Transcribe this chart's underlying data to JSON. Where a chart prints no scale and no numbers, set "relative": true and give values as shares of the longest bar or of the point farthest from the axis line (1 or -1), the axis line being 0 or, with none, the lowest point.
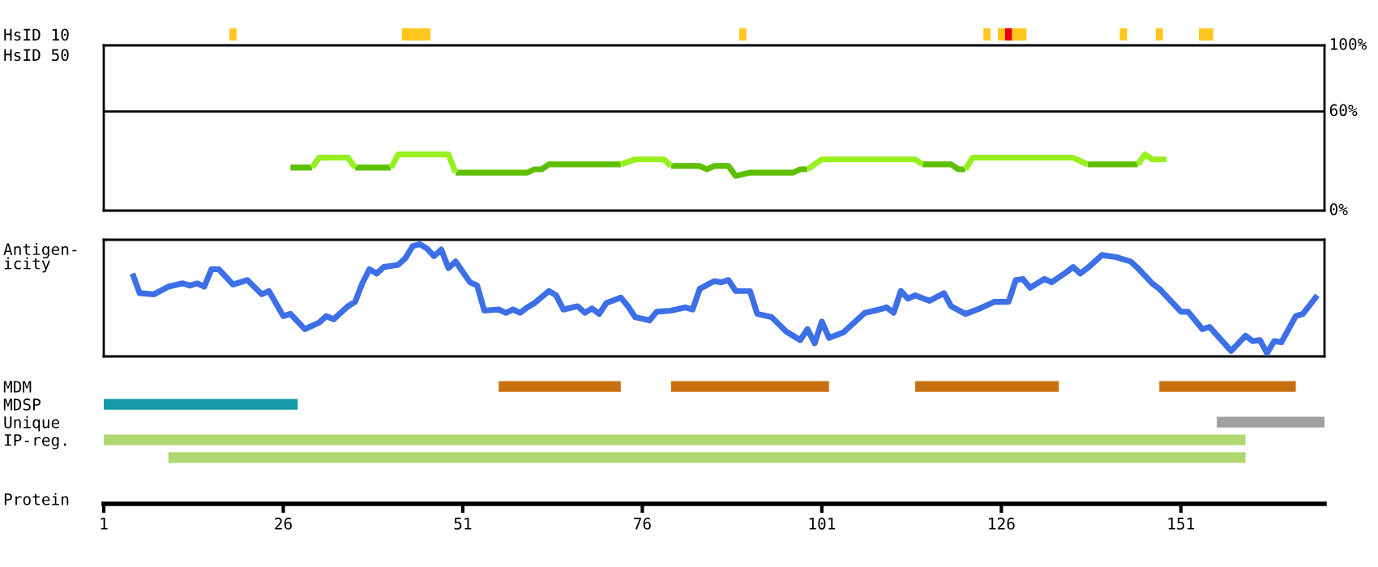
{
  "chart_data": [
    {
      "type": "bar",
      "orientation": "horizontal",
      "categories": [
        "HsID 10",
        "HsID 50"
      ],
      "xlim": [
        1,
        171
      ],
      "xticks": [
        1,
        26,
        51,
        76,
        101,
        126,
        151
      ],
      "tick_labels": "y",
      "series": [
        {
          "color": "#ffc61e",
          "base": [
            18.5,
            null
          ],
          "values": [
            1,
            null
          ]
        },
        {
          "color": "#ffc61e",
          "base": [
            42.5,
            null
          ],
          "values": [
            4,
            null
          ]
        },
        {
          "color": "#ffc61e",
          "base": [
            89.5,
            null
          ],
          "values": [
            1,
            null
          ]
        },
        {
          "color": "#ffc61e",
          "base": [
            123.5,
            null
          ],
          "values": [
            1,
            null
          ]
        },
        {
          "color": "#ffc61e",
          "base": [
            125.5,
            null
          ],
          "values": [
            1,
            null
          ]
        },
        {
          "color": "#e8000b",
          "base": [
            126.5,
            null
          ],
          "values": [
            1,
            null
          ]
        },
        {
          "color": "#ffc61e",
          "base": [
            127.5,
            null
          ],
          "values": [
            2,
            null
          ]
        },
        {
          "color": "#ffc61e",
          "base": [
            142.5,
            null
          ],
          "values": [
            1,
            null
          ]
        },
        {
          "color": "#ffc61e",
          "base": [
            147.5,
            null
          ],
          "values": [
            1,
            null
          ]
        },
        {
          "color": "#ffc61e",
          "base": [
            153.5,
            null
          ],
          "values": [
            2,
            null
          ]
        }
      ]
    },
    {
      "type": "line",
      "xlim": [
        1,
        171
      ],
      "xticks": [
        1,
        26,
        51,
        76,
        101,
        126,
        151
      ],
      "ylim": [
        0,
        100
      ],
      "yticks": [
        {
          "value": 0,
          "label": "0%"
        },
        {
          "value": 60,
          "label": "60%"
        },
        {
          "value": 100,
          "label": "100%"
        }
      ],
      "tick_labels": "y",
      "ref_lines": [
        {
          "axis": "y",
          "value": 60,
          "color": "#000000"
        }
      ],
      "series": [
        {
          "color": "#5cc000",
          "x": [
            27,
            30,
            33,
            36,
            41,
            45,
            50,
            60,
            61,
            62,
            63,
            73,
            76,
            80,
            84,
            85,
            86,
            88,
            89,
            91,
            97,
            98,
            99,
            107,
            115,
            119,
            120,
            121,
            130,
            138,
            145
          ],
          "values": [
            26,
            26,
            null,
            26,
            26,
            null,
            23,
            23,
            25,
            25,
            28,
            28,
            null,
            27,
            27,
            25,
            27,
            27,
            21,
            23,
            23,
            25,
            25,
            null,
            28,
            28,
            25,
            25,
            null,
            28,
            28
          ]
        },
        {
          "color": "#99f020",
          "x": [
            30,
            31,
            35,
            36,
            38,
            41,
            42,
            49,
            50,
            60,
            73,
            75,
            79,
            80,
            90,
            99,
            101,
            114,
            115,
            118,
            121,
            122,
            136,
            138
          ],
          "values": [
            26,
            32,
            32,
            26,
            null,
            26,
            34,
            34,
            23,
            null,
            28,
            31,
            31,
            27,
            null,
            25,
            31,
            31,
            28,
            null,
            25,
            32,
            32,
            28
          ]
        },
        {
          "color": "#99f020",
          "x": [
            145,
            146,
            147,
            149
          ],
          "values": [
            28,
            34,
            31,
            31
          ]
        }
      ]
    },
    {
      "type": "line",
      "relative": true,
      "ylabel": "Antigen-\nicity",
      "xlim": [
        1,
        171
      ],
      "xticks": [
        1,
        26,
        51,
        76,
        101,
        126,
        151
      ],
      "tick_labels": false,
      "series": [
        {
          "color": "#3d6fe6",
          "x": [
            5,
            6,
            8,
            10,
            12,
            13,
            14,
            15,
            16,
            17,
            19,
            21,
            23,
            24,
            26,
            27,
            29,
            31,
            32,
            33,
            35,
            36,
            37,
            38,
            39,
            40,
            42,
            43,
            44,
            45,
            46,
            47,
            48,
            49,
            50,
            52,
            53,
            54,
            56,
            57,
            58,
            59,
            60,
            61,
            63,
            64,
            65,
            67,
            68,
            69,
            70,
            71,
            73,
            74,
            75,
            77,
            78,
            80,
            82,
            83,
            84,
            86,
            87,
            88,
            89,
            91,
            92,
            94,
            96,
            98,
            99,
            100,
            101,
            102,
            104,
            107,
            109,
            110,
            111,
            112,
            113,
            114,
            116,
            118,
            119,
            121,
            123,
            125,
            127,
            128,
            129,
            130,
            132,
            133,
            135,
            136,
            137,
            138,
            140,
            142,
            144,
            145,
            147,
            148,
            151,
            152,
            154,
            155,
            158,
            160,
            161,
            162,
            163,
            164,
            165,
            167,
            168,
            170
          ],
          "values": [
            0.73,
            0.55,
            0.54,
            0.61,
            0.64,
            0.62,
            0.64,
            0.61,
            0.77,
            0.77,
            0.63,
            0.67,
            0.54,
            0.57,
            0.34,
            0.36,
            0.22,
            0.28,
            0.34,
            0.31,
            0.43,
            0.47,
            0.64,
            0.77,
            0.73,
            0.79,
            0.81,
            0.87,
            0.98,
            1.0,
            0.96,
            0.89,
            0.95,
            0.78,
            0.84,
            0.65,
            0.62,
            0.39,
            0.4,
            0.37,
            0.4,
            0.37,
            0.42,
            0.46,
            0.57,
            0.53,
            0.4,
            0.43,
            0.37,
            0.41,
            0.36,
            0.46,
            0.51,
            0.43,
            0.33,
            0.3,
            0.38,
            0.39,
            0.42,
            0.4,
            0.59,
            0.66,
            0.65,
            0.67,
            0.57,
            0.57,
            0.36,
            0.33,
            0.2,
            0.12,
            0.22,
            0.09,
            0.29,
            0.14,
            0.19,
            0.37,
            0.4,
            0.42,
            0.37,
            0.57,
            0.5,
            0.53,
            0.48,
            0.55,
            0.43,
            0.36,
            0.41,
            0.47,
            0.47,
            0.67,
            0.68,
            0.6,
            0.68,
            0.65,
            0.74,
            0.79,
            0.73,
            0.78,
            0.9,
            0.88,
            0.84,
            0.78,
            0.64,
            0.59,
            0.38,
            0.38,
            0.22,
            0.24,
            0.02,
            0.16,
            0.11,
            0.12,
            0.0,
            0.11,
            0.1,
            0.34,
            0.36,
            0.53
          ]
        }
      ]
    },
    {
      "type": "bar",
      "orientation": "horizontal",
      "categories": [
        "MDM",
        "MDSP",
        "Unique",
        "IP-reg.",
        null
      ],
      "xlabel": "Protein",
      "xlim": [
        1,
        171
      ],
      "xticks": [
        1,
        26,
        51,
        76,
        101,
        126,
        151
      ],
      "series": [
        {
          "color": "#c87010",
          "base": [
            56,
            null,
            null,
            null,
            null
          ],
          "values": [
            17,
            null,
            null,
            null,
            null
          ]
        },
        {
          "color": "#c87010",
          "base": [
            80,
            null,
            null,
            null,
            null
          ],
          "values": [
            22,
            null,
            null,
            null,
            null
          ]
        },
        {
          "color": "#c87010",
          "base": [
            114,
            null,
            null,
            null,
            null
          ],
          "values": [
            20,
            null,
            null,
            null,
            null
          ]
        },
        {
          "color": "#c87010",
          "base": [
            148,
            null,
            null,
            null,
            null
          ],
          "values": [
            19,
            null,
            null,
            null,
            null
          ]
        },
        {
          "color": "#149aa8",
          "base": [
            null,
            1,
            null,
            null,
            null
          ],
          "values": [
            null,
            27,
            null,
            null,
            null
          ]
        },
        {
          "color": "#a0a0a0",
          "base": [
            null,
            null,
            156,
            null,
            null
          ],
          "values": [
            null,
            null,
            15,
            null,
            null
          ]
        },
        {
          "color": "#b0d870",
          "base": [
            null,
            null,
            null,
            1,
            10
          ],
          "values": [
            null,
            null,
            null,
            159,
            150
          ]
        }
      ]
    }
  ]
}
